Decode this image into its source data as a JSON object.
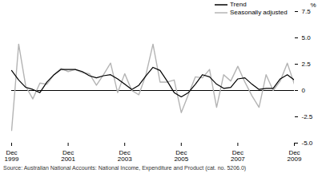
{
  "chart_data": {
    "type": "line",
    "y_label": "%",
    "caption": "Source: Australian National Accounts: National Income, Expenditure and Product (cat. no. 5206.0)",
    "categories": [
      "Dec 1999",
      null,
      null,
      null,
      null,
      null,
      null,
      null,
      "Dec 2001",
      null,
      null,
      null,
      null,
      null,
      null,
      null,
      "Dec 2003",
      null,
      null,
      null,
      null,
      null,
      null,
      null,
      "Dec 2005",
      null,
      null,
      null,
      null,
      null,
      null,
      null,
      "Dec 2007",
      null,
      null,
      null,
      null,
      null,
      null,
      null,
      "Dec 2009"
    ],
    "series": [
      {
        "name": "Trend",
        "color": "#000000",
        "values": [
          1.9,
          1.0,
          0.3,
          0.1,
          -0.2,
          0.8,
          1.5,
          2.0,
          2.0,
          2.0,
          1.8,
          1.4,
          1.2,
          1.4,
          1.5,
          1.1,
          0.6,
          0.1,
          0.5,
          1.4,
          2.2,
          1.9,
          0.9,
          -0.2,
          -0.6,
          -0.2,
          0.6,
          1.5,
          1.3,
          0.6,
          0.2,
          0.3,
          1.1,
          1.2,
          0.6,
          0.1,
          0.2,
          0.2,
          1.1,
          1.5,
          1.0
        ]
      },
      {
        "name": "Seasonally adjusted",
        "color": "#b4b4b4",
        "values": [
          -3.8,
          4.4,
          0.4,
          -0.8,
          0.7,
          0.6,
          1.5,
          2.1,
          1.8,
          2.0,
          1.7,
          1.6,
          0.5,
          1.5,
          2.6,
          -0.2,
          1.6,
          0.0,
          -0.4,
          1.5,
          4.4,
          0.8,
          0.8,
          1.0,
          -2.1,
          -0.4,
          1.3,
          1.2,
          2.0,
          -1.6,
          1.5,
          0.9,
          2.3,
          0.8,
          -0.5,
          -1.6,
          1.5,
          0.0,
          0.9,
          2.6,
          0.6
        ]
      }
    ],
    "ylim": [
      -5,
      7.5
    ],
    "yticks": [
      {
        "value": -5,
        "label": "-5.0"
      },
      -2.5,
      0,
      2.5,
      {
        "value": 5,
        "label": "5.0"
      },
      7.5
    ],
    "legend": "top-right"
  }
}
